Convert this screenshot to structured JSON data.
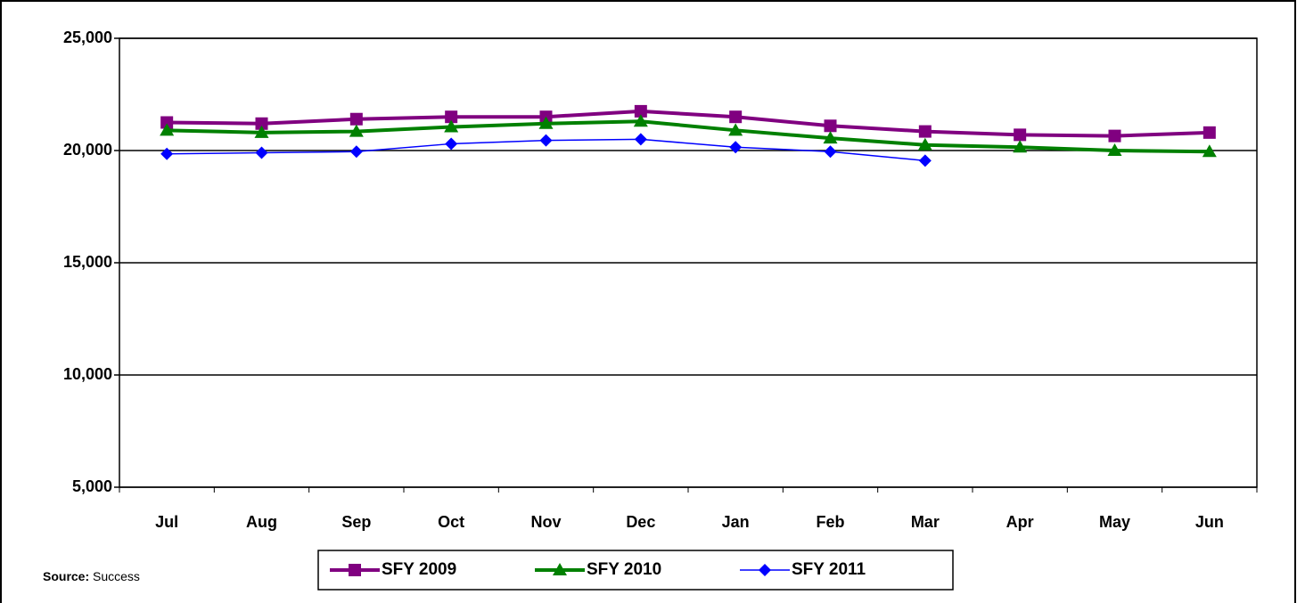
{
  "chart_data": {
    "type": "line",
    "source_label": "Source:",
    "source_text": "Success",
    "categories": [
      "Jul",
      "Aug",
      "Sep",
      "Oct",
      "Nov",
      "Dec",
      "Jan",
      "Feb",
      "Mar",
      "Apr",
      "May",
      "Jun"
    ],
    "series": [
      {
        "name": "SFY 2009",
        "color": "#800080",
        "marker": "square",
        "values": [
          21250,
          21200,
          21400,
          21500,
          21500,
          21750,
          21500,
          21100,
          20850,
          20700,
          20650,
          20800
        ]
      },
      {
        "name": "SFY 2010",
        "color": "#008000",
        "marker": "triangle",
        "values": [
          20900,
          20800,
          20850,
          21050,
          21200,
          21300,
          20900,
          20550,
          20250,
          20150,
          20000,
          19950
        ]
      },
      {
        "name": "SFY 2011",
        "color": "#0000ff",
        "marker": "diamond",
        "values": [
          19850,
          19900,
          19950,
          20300,
          20450,
          20500,
          20150,
          19950,
          19550,
          null,
          null,
          null
        ]
      }
    ],
    "ylim": [
      5000,
      25000
    ],
    "yticks": [
      {
        "value": 5000,
        "label": "5,000"
      },
      {
        "value": 10000,
        "label": "10,000"
      },
      {
        "value": 15000,
        "label": "15,000"
      },
      {
        "value": 20000,
        "label": "20,000"
      },
      {
        "value": 25000,
        "label": "25,000"
      }
    ],
    "grid": true
  }
}
